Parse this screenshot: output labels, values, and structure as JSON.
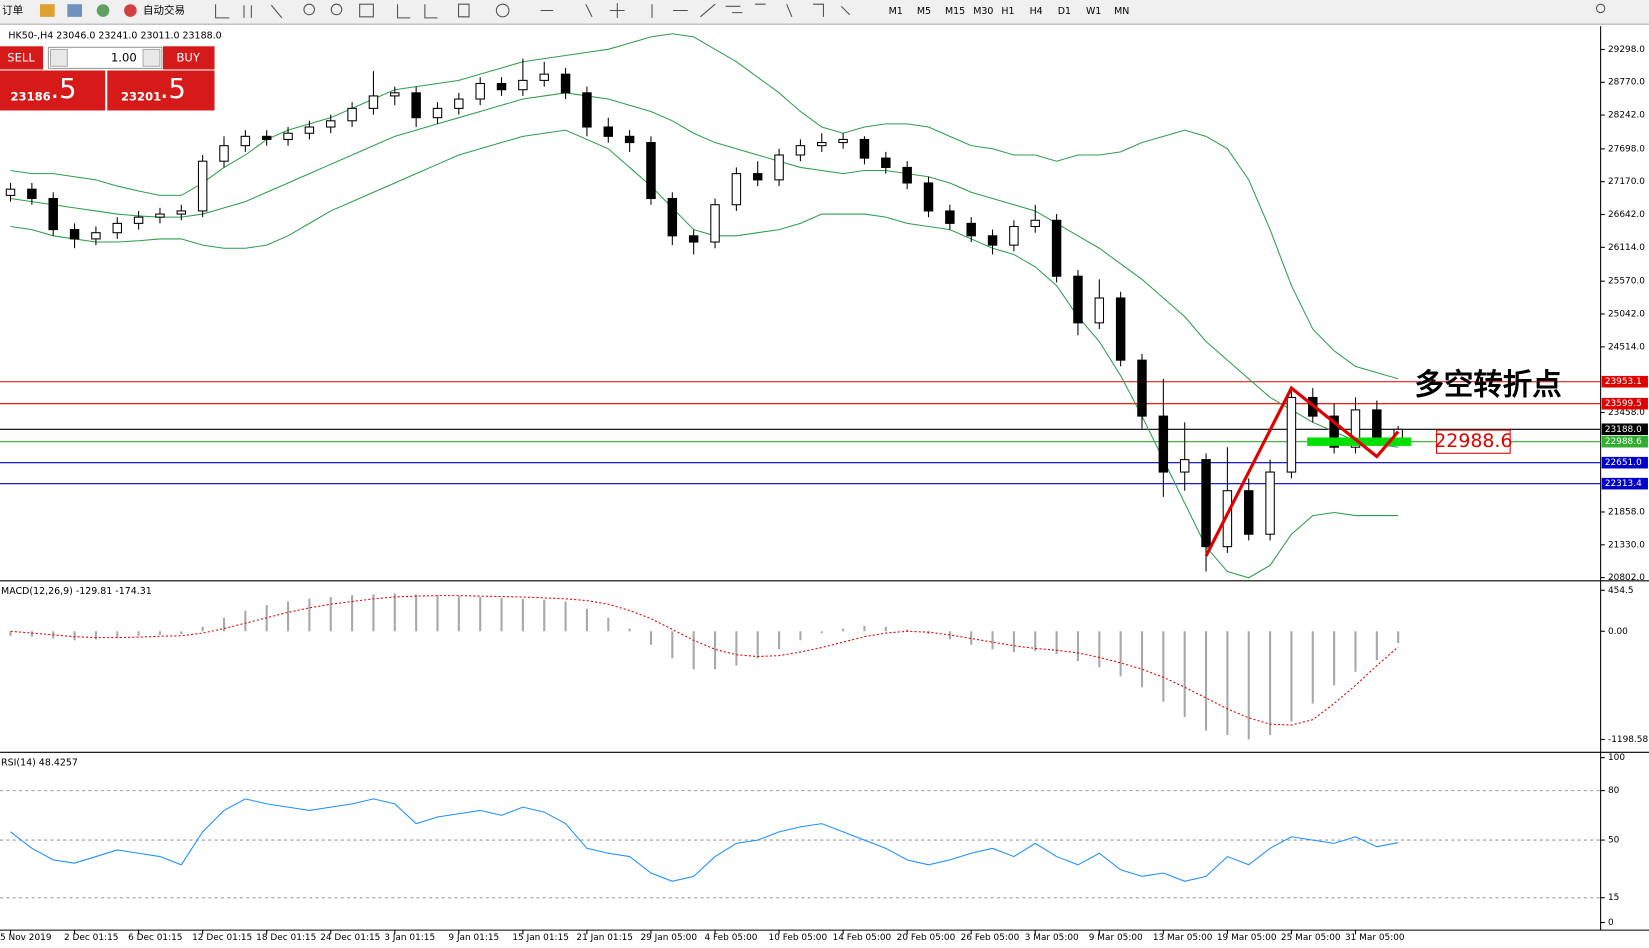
{
  "ui": {
    "toolbar": {
      "order": "订单",
      "auto_trade": "自动交易",
      "timeframes": [
        "M1",
        "M5",
        "M15",
        "M30",
        "H1",
        "H4",
        "D1",
        "W1",
        "MN"
      ]
    },
    "trade_panel": {
      "sell": "SELL",
      "lots": "1.00",
      "buy": "BUY",
      "bid_main": "23186",
      "bid_tail": ".5",
      "ask_main": "23201",
      "ask_tail": ".5"
    }
  },
  "chart_data": [
    {
      "type": "candlestick",
      "title": "HK50-,H4  23046.0 23241.0 23011.0 23188.0",
      "categories": [
        "5 Nov 2019",
        null,
        null,
        "2 Dec 01:15",
        null,
        null,
        "6 Dec 01:15",
        null,
        null,
        "12 Dec 01:15",
        null,
        null,
        "18 Dec 01:15",
        null,
        null,
        "24 Dec 01:15",
        null,
        null,
        "3 Jan 01:15",
        null,
        null,
        "9 Jan 01:15",
        null,
        null,
        "15 Jan 01:15",
        null,
        null,
        "21 Jan 01:15",
        null,
        null,
        "29 Jan 05:00",
        null,
        null,
        "4 Feb 05:00",
        null,
        null,
        "10 Feb 05:00",
        null,
        null,
        "14 Feb 05:00",
        null,
        null,
        "20 Feb 05:00",
        null,
        null,
        "26 Feb 05:00",
        null,
        null,
        "3 Mar 05:00",
        null,
        null,
        "9 Mar 05:00",
        null,
        null,
        "13 Mar 05:00",
        null,
        null,
        "19 Mar 05:00",
        null,
        null,
        "25 Mar 05:00",
        null,
        null,
        "31 Mar 05:00",
        null,
        null
      ],
      "open": [
        26950,
        27050,
        26900,
        26400,
        26250,
        26350,
        26500,
        26600,
        26650,
        26700,
        27500,
        27750,
        27900,
        27850,
        27950,
        28050,
        28150,
        28350,
        28550,
        28600,
        28200,
        28350,
        28500,
        28750,
        28650,
        28800,
        28900,
        28600,
        28050,
        27900,
        27800,
        26900,
        26300,
        26200,
        26800,
        27300,
        27200,
        27600,
        27750,
        27800,
        27850,
        27550,
        27400,
        27150,
        26700,
        26500,
        26300,
        26150,
        26450,
        26550,
        25650,
        24900,
        25300,
        24300,
        23400,
        22500,
        22700,
        21300,
        22200,
        21500,
        22500,
        23700,
        23400,
        22900,
        23500,
        23046
      ],
      "high": [
        27150,
        27150,
        27000,
        26500,
        26450,
        26600,
        26700,
        26750,
        26800,
        27600,
        27900,
        28000,
        28000,
        28050,
        28150,
        28250,
        28450,
        28950,
        28700,
        28700,
        28450,
        28600,
        28850,
        28850,
        29150,
        29100,
        29000,
        28700,
        28200,
        28000,
        27900,
        27000,
        26400,
        26900,
        27400,
        27500,
        27700,
        27850,
        27950,
        27950,
        27900,
        27650,
        27500,
        27250,
        26800,
        26600,
        26400,
        26550,
        26800,
        26650,
        25750,
        25600,
        25400,
        24400,
        24000,
        23300,
        22800,
        22900,
        22400,
        22700,
        23850,
        23850,
        23600,
        23700,
        23650,
        23241
      ],
      "low": [
        26850,
        26800,
        26300,
        26100,
        26150,
        26250,
        26400,
        26500,
        26550,
        26600,
        27400,
        27650,
        27750,
        27750,
        27850,
        27950,
        28050,
        28250,
        28400,
        28050,
        28100,
        28250,
        28400,
        28550,
        28550,
        28700,
        28500,
        27900,
        27800,
        27650,
        26800,
        26150,
        26000,
        26100,
        26700,
        27100,
        27100,
        27500,
        27650,
        27700,
        27450,
        27300,
        27050,
        26600,
        26400,
        26200,
        26000,
        26050,
        26350,
        25550,
        24700,
        24800,
        24200,
        23200,
        22100,
        22200,
        20900,
        21200,
        21400,
        21400,
        22400,
        23300,
        22800,
        22800,
        22950,
        23011
      ],
      "close": [
        27050,
        26900,
        26400,
        26250,
        26350,
        26500,
        26600,
        26650,
        26700,
        27500,
        27750,
        27900,
        27850,
        27950,
        28050,
        28150,
        28350,
        28550,
        28600,
        28200,
        28350,
        28500,
        28750,
        28650,
        28800,
        28900,
        28600,
        28050,
        27900,
        27800,
        26900,
        26300,
        26200,
        26800,
        27300,
        27200,
        27600,
        27750,
        27800,
        27850,
        27550,
        27400,
        27150,
        26700,
        26500,
        26300,
        26150,
        26450,
        26550,
        25650,
        24900,
        25300,
        24300,
        23400,
        22500,
        22700,
        21300,
        22200,
        21500,
        22500,
        23700,
        23400,
        22900,
        23500,
        23050,
        23188
      ],
      "bands": {
        "color": "#2e9e4f",
        "upper": [
          27350,
          27300,
          27300,
          27250,
          27200,
          27100,
          27020,
          26950,
          26950,
          27150,
          27400,
          27600,
          27850,
          28000,
          28100,
          28200,
          28350,
          28500,
          28650,
          28700,
          28750,
          28800,
          28900,
          29000,
          29100,
          29150,
          29200,
          29250,
          29300,
          29400,
          29500,
          29550,
          29500,
          29300,
          29100,
          28850,
          28600,
          28300,
          28050,
          27950,
          28050,
          28100,
          28100,
          28050,
          27900,
          27750,
          27700,
          27600,
          27600,
          27500,
          27600,
          27600,
          27650,
          27800,
          27900,
          28000,
          27900,
          27700,
          27200,
          26400,
          25500,
          24800,
          24450,
          24200,
          24100,
          24000
        ],
        "middle": [
          26900,
          26850,
          26800,
          26750,
          26700,
          26650,
          26620,
          26600,
          26600,
          26650,
          26750,
          26850,
          27000,
          27150,
          27300,
          27450,
          27600,
          27750,
          27900,
          28000,
          28100,
          28200,
          28300,
          28400,
          28500,
          28550,
          28600,
          28550,
          28500,
          28400,
          28300,
          28150,
          27950,
          27800,
          27700,
          27600,
          27500,
          27400,
          27350,
          27300,
          27350,
          27350,
          27300,
          27250,
          27150,
          27000,
          26900,
          26800,
          26700,
          26500,
          26300,
          26100,
          25850,
          25600,
          25300,
          25000,
          24600,
          24300,
          24000,
          23700,
          23500,
          23300,
          23150,
          23000,
          22950,
          22900
        ],
        "lower": [
          26450,
          26400,
          26300,
          26250,
          26200,
          26200,
          26220,
          26250,
          26250,
          26150,
          26100,
          26100,
          26150,
          26300,
          26500,
          26700,
          26850,
          27000,
          27150,
          27300,
          27450,
          27600,
          27700,
          27800,
          27900,
          27950,
          28000,
          27850,
          27700,
          27400,
          27100,
          26750,
          26400,
          26300,
          26300,
          26350,
          26400,
          26500,
          26650,
          26650,
          26650,
          26600,
          26500,
          26450,
          26400,
          26250,
          26100,
          26000,
          25800,
          25500,
          25000,
          24600,
          24050,
          23400,
          22700,
          22000,
          21300,
          20900,
          20800,
          21000,
          21500,
          21800,
          21850,
          21800,
          21800,
          21800
        ]
      },
      "ylim": [
        20768,
        29636
      ],
      "yticks": [
        {
          "value": 29298,
          "label": "29298.0"
        },
        {
          "value": 28770,
          "label": "28770.0"
        },
        {
          "value": 28242,
          "label": "28242.0"
        },
        {
          "value": 27698,
          "label": "27698.0"
        },
        {
          "value": 27170,
          "label": "27170.0"
        },
        {
          "value": 26642,
          "label": "26642.0"
        },
        {
          "value": 26114,
          "label": "26114.0"
        },
        {
          "value": 25570,
          "label": "25570.0"
        },
        {
          "value": 25042,
          "label": "25042.0"
        },
        {
          "value": 24514,
          "label": "24514.0"
        },
        {
          "value": 23458,
          "label": "23458.0"
        },
        {
          "value": 21858,
          "label": "21858.0"
        },
        {
          "value": 21330,
          "label": "21330.0"
        },
        {
          "value": 20802,
          "label": "20802.0"
        }
      ],
      "levels": [
        {
          "value": 23953.1,
          "color": "#e00000"
        },
        {
          "value": 23599.5,
          "color": "#e00000"
        },
        {
          "value": 23188,
          "label": "23188.0",
          "color": "#000000"
        },
        {
          "value": 22988.6,
          "color": "#2fae2f"
        },
        {
          "value": 22651,
          "label": "22651.0",
          "color": "#0000c8"
        },
        {
          "value": 22313.4,
          "color": "#0000c8"
        }
      ],
      "annotation": {
        "text": "多空转折点",
        "color": "#1a9a1a"
      },
      "pivot": {
        "value": 22988.6,
        "color": "#00e000",
        "label_color": "#e00000"
      },
      "trend_path": {
        "color": "#e00000",
        "x": [
          56,
          60,
          64,
          65
        ],
        "y": [
          21150,
          23850,
          22750,
          23150
        ]
      }
    },
    {
      "type": "macd",
      "title": "MACD(12,26,9) -129.81 -174.31",
      "hist_color": "#a8a8a8",
      "signal_color": "#e00000",
      "values": [
        -50,
        -60,
        -80,
        -100,
        -90,
        -70,
        -50,
        -40,
        -30,
        50,
        150,
        230,
        290,
        330,
        360,
        380,
        400,
        410,
        420,
        410,
        400,
        390,
        380,
        370,
        360,
        350,
        330,
        250,
        150,
        30,
        -150,
        -300,
        -420,
        -420,
        -380,
        -300,
        -200,
        -100,
        -20,
        30,
        60,
        50,
        20,
        -30,
        -90,
        -150,
        -200,
        -230,
        -220,
        -250,
        -330,
        -400,
        -500,
        -620,
        -780,
        -950,
        -1100,
        -1150,
        -1200,
        -1150,
        -1000,
        -800,
        -600,
        -450,
        -320,
        -129.81
      ],
      "signal": [
        0,
        -20,
        -40,
        -60,
        -70,
        -70,
        -65,
        -55,
        -50,
        -20,
        30,
        90,
        150,
        210,
        260,
        300,
        330,
        360,
        380,
        390,
        395,
        395,
        390,
        385,
        380,
        370,
        360,
        340,
        300,
        230,
        140,
        20,
        -100,
        -200,
        -260,
        -280,
        -270,
        -230,
        -180,
        -120,
        -60,
        -20,
        0,
        -10,
        -40,
        -80,
        -120,
        -160,
        -190,
        -210,
        -240,
        -290,
        -350,
        -420,
        -510,
        -620,
        -740,
        -860,
        -960,
        -1030,
        -1040,
        -980,
        -800,
        -600,
        -380,
        -174.31
      ],
      "ylim": [
        -1330,
        548
      ],
      "yticks": [
        454.5,
        {
          "value": 0,
          "label": "0.00"
        },
        -1198.58
      ]
    },
    {
      "type": "line",
      "title": "RSI(14) 48.4257",
      "color": "#1e90ff",
      "values": [
        55,
        45,
        38,
        36,
        40,
        44,
        42,
        40,
        35,
        55,
        68,
        75,
        72,
        70,
        68,
        70,
        72,
        75,
        72,
        60,
        64,
        66,
        68,
        65,
        70,
        67,
        60,
        45,
        42,
        40,
        30,
        25,
        28,
        40,
        48,
        50,
        55,
        58,
        60,
        55,
        50,
        45,
        38,
        35,
        38,
        42,
        45,
        40,
        48,
        40,
        35,
        42,
        32,
        28,
        30,
        25,
        28,
        40,
        35,
        45,
        52,
        50,
        48,
        52,
        46,
        48.4257
      ],
      "ylim": [
        -4,
        102
      ],
      "yticks": [
        100,
        80,
        50,
        15,
        0
      ],
      "dashed_levels": [
        80,
        50,
        15
      ]
    }
  ]
}
